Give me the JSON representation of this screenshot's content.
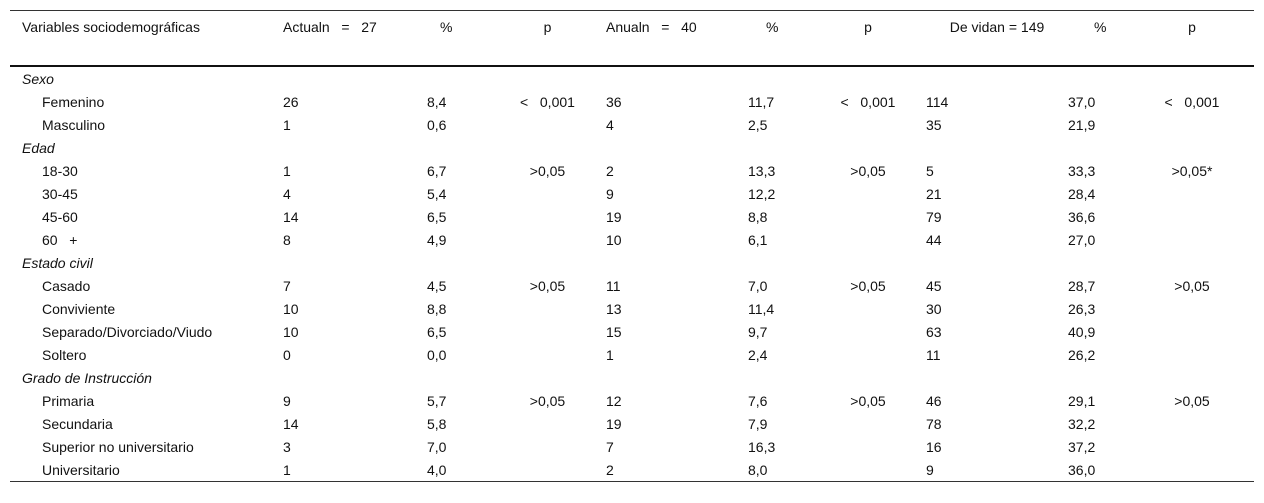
{
  "header": {
    "variables": "Variables sociodemográficas",
    "actual": "Actualn   =   27",
    "pct1": "%",
    "p1": "p",
    "anual": "Anualn   =   40",
    "pct2": "%",
    "p2": "p",
    "devida": "De vidan   =   149",
    "pct3": "%",
    "p3": "p"
  },
  "rows": [
    {
      "type": "group",
      "label": "Sexo"
    },
    {
      "type": "sub",
      "label": "Femenino",
      "cells": [
        "26",
        "8,4",
        "<   0,001",
        "36",
        "11,7",
        "<   0,001",
        "114",
        "37,0",
        "<   0,001"
      ]
    },
    {
      "type": "sub",
      "label": "Masculino",
      "cells": [
        "1",
        "0,6",
        "",
        "4",
        "2,5",
        "",
        "35",
        "21,9",
        ""
      ]
    },
    {
      "type": "group",
      "label": "Edad"
    },
    {
      "type": "sub",
      "label": "18-30",
      "cells": [
        "1",
        "6,7",
        ">0,05",
        "2",
        "13,3",
        ">0,05",
        "5",
        "33,3",
        ">0,05*"
      ]
    },
    {
      "type": "sub",
      "label": "30-45",
      "cells": [
        "4",
        "5,4",
        "",
        "9",
        "12,2",
        "",
        "21",
        "28,4",
        ""
      ]
    },
    {
      "type": "sub",
      "label": "45-60",
      "cells": [
        "14",
        "6,5",
        "",
        "19",
        "8,8",
        "",
        "79",
        "36,6",
        ""
      ]
    },
    {
      "type": "sub",
      "label": "60   +",
      "cells": [
        "8",
        "4,9",
        "",
        "10",
        "6,1",
        "",
        "44",
        "27,0",
        ""
      ]
    },
    {
      "type": "group",
      "label": "Estado civil"
    },
    {
      "type": "sub",
      "label": "Casado",
      "cells": [
        "7",
        "4,5",
        ">0,05",
        "11",
        "7,0",
        ">0,05",
        "45",
        "28,7",
        ">0,05"
      ]
    },
    {
      "type": "sub",
      "label": "Conviviente",
      "cells": [
        "10",
        "8,8",
        "",
        "13",
        "11,4",
        "",
        "30",
        "26,3",
        ""
      ]
    },
    {
      "type": "sub",
      "label": "Separado/Divorciado/Viudo",
      "cells": [
        "10",
        "6,5",
        "",
        "15",
        "9,7",
        "",
        "63",
        "40,9",
        ""
      ]
    },
    {
      "type": "sub",
      "label": "Soltero",
      "cells": [
        "0",
        "0,0",
        "",
        "1",
        "2,4",
        "",
        "11",
        "26,2",
        ""
      ]
    },
    {
      "type": "group",
      "label": "Grado de Instrucción"
    },
    {
      "type": "sub",
      "label": "Primaria",
      "cells": [
        "9",
        "5,7",
        ">0,05",
        "12",
        "7,6",
        ">0,05",
        "46",
        "29,1",
        ">0,05"
      ]
    },
    {
      "type": "sub",
      "label": "Secundaria",
      "cells": [
        "14",
        "5,8",
        "",
        "19",
        "7,9",
        "",
        "78",
        "32,2",
        ""
      ]
    },
    {
      "type": "sub",
      "label": "Superior no universitario",
      "cells": [
        "3",
        "7,0",
        "",
        "7",
        "16,3",
        "",
        "16",
        "37,2",
        ""
      ]
    },
    {
      "type": "sub",
      "label": "Universitario",
      "cells": [
        "1",
        "4,0",
        "",
        "2",
        "8,0",
        "",
        "9",
        "36,0",
        ""
      ]
    }
  ]
}
